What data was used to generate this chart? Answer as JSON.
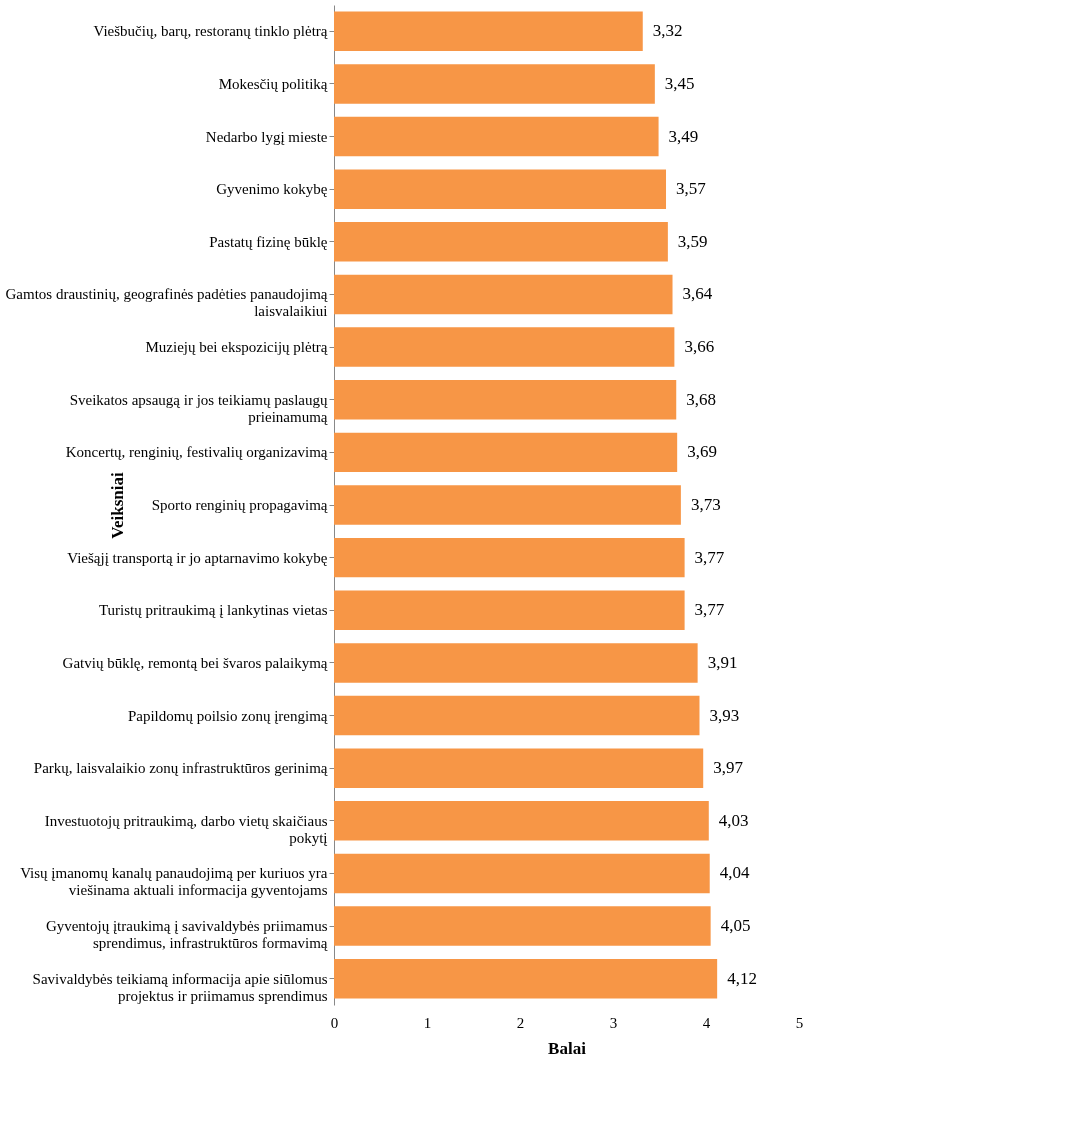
{
  "chart_data": {
    "type": "bar",
    "orientation": "horizontal",
    "xlabel": "Balai",
    "ylabel": "Veiksniai",
    "categories": [
      "Viešbučių, barų, restoranų tinklo plėtrą",
      "Mokesčių politiką",
      "Nedarbo lygį mieste",
      "Gyvenimo kokybę",
      "Pastatų fizinę būklę",
      "Gamtos draustinių, geografinės padėties panaudojimą laisvalaikiui",
      "Muziejų bei ekspozicijų plėtrą",
      "Sveikatos apsaugą ir jos teikiamų paslaugų prieinamumą",
      "Koncertų, renginių, festivalių organizavimą",
      "Sporto renginių propagavimą",
      "Viešąjį transportą ir jo aptarnavimo kokybę",
      "Turistų pritraukimą į lankytinas vietas",
      "Gatvių būklę, remontą bei švaros palaikymą",
      "Papildomų poilsio zonų įrengimą",
      "Parkų, laisvalaikio zonų infrastruktūros gerinimą",
      "Investuotojų pritraukimą, darbo vietų skaičiaus pokytį",
      "Visų įmanomų kanalų panaudojimą per kuriuos yra viešinama aktuali informacija gyventojams",
      "Gyventojų įtraukimą į savivaldybės priimamus sprendimus, infrastruktūros formavimą",
      "Savivaldybės teikiamą informacija apie siūlomus projektus ir priimamus sprendimus"
    ],
    "values": [
      3.32,
      3.45,
      3.49,
      3.57,
      3.59,
      3.64,
      3.66,
      3.68,
      3.69,
      3.73,
      3.77,
      3.77,
      3.91,
      3.93,
      3.97,
      4.03,
      4.04,
      4.05,
      4.12
    ],
    "value_labels": [
      "3,32",
      "3,45",
      "3,49",
      "3,57",
      "3,59",
      "3,64",
      "3,66",
      "3,68",
      "3,69",
      "3,73",
      "3,77",
      "3,77",
      "3,91",
      "3,93",
      "3,97",
      "4,03",
      "4,04",
      "4,05",
      "4,12"
    ],
    "color": "#f79646",
    "xlim": [
      0,
      5
    ],
    "xticks": [
      0,
      1,
      2,
      3,
      4,
      5
    ],
    "grid": false
  }
}
